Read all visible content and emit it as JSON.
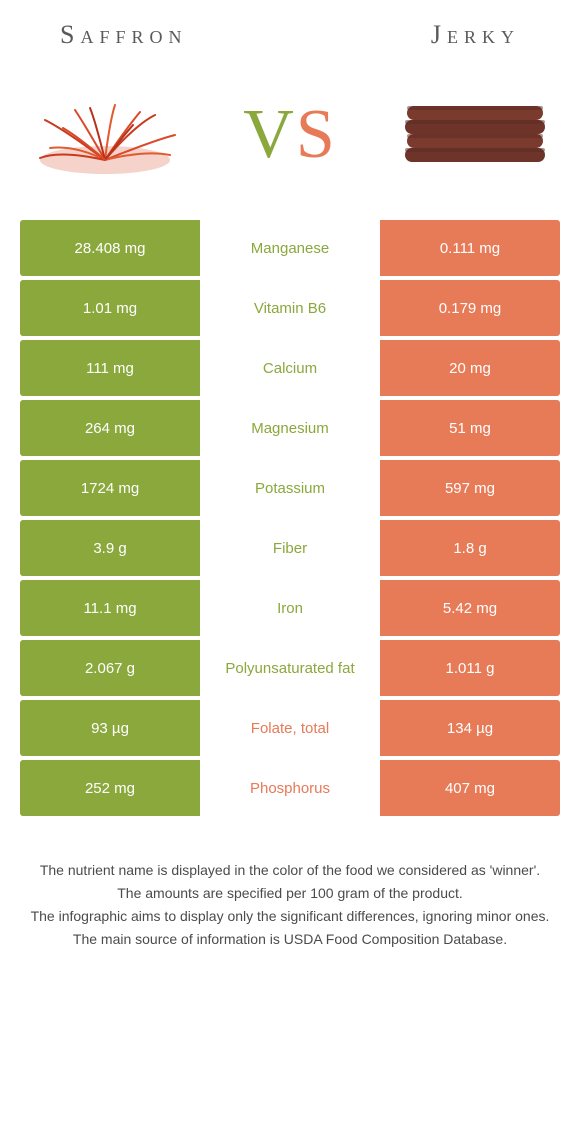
{
  "colors": {
    "left": "#8aa83c",
    "right": "#e77a57",
    "background": "#ffffff",
    "text": "#4b4b4b"
  },
  "header": {
    "left_title": "Saffron",
    "right_title": "Jerky"
  },
  "vs": {
    "v": "V",
    "s": "S"
  },
  "rows": [
    {
      "left": "28.408 mg",
      "label": "Manganese",
      "right": "0.111 mg",
      "winner": "left"
    },
    {
      "left": "1.01 mg",
      "label": "Vitamin B6",
      "right": "0.179 mg",
      "winner": "left"
    },
    {
      "left": "111 mg",
      "label": "Calcium",
      "right": "20 mg",
      "winner": "left"
    },
    {
      "left": "264 mg",
      "label": "Magnesium",
      "right": "51 mg",
      "winner": "left"
    },
    {
      "left": "1724 mg",
      "label": "Potassium",
      "right": "597 mg",
      "winner": "left"
    },
    {
      "left": "3.9 g",
      "label": "Fiber",
      "right": "1.8 g",
      "winner": "left"
    },
    {
      "left": "11.1 mg",
      "label": "Iron",
      "right": "5.42 mg",
      "winner": "left"
    },
    {
      "left": "2.067 g",
      "label": "Polyunsaturated fat",
      "right": "1.011 g",
      "winner": "left"
    },
    {
      "left": "93 µg",
      "label": "Folate, total",
      "right": "134 µg",
      "winner": "right"
    },
    {
      "left": "252 mg",
      "label": "Phosphorus",
      "right": "407 mg",
      "winner": "right"
    }
  ],
  "footer": {
    "line1": "The nutrient name is displayed in the color of the food we considered as 'winner'.",
    "line2": "The amounts are specified per 100 gram of the product.",
    "line3": "The infographic aims to display only the significant differences, ignoring minor ones.",
    "line4": "The main source of information is USDA Food Composition Database."
  }
}
